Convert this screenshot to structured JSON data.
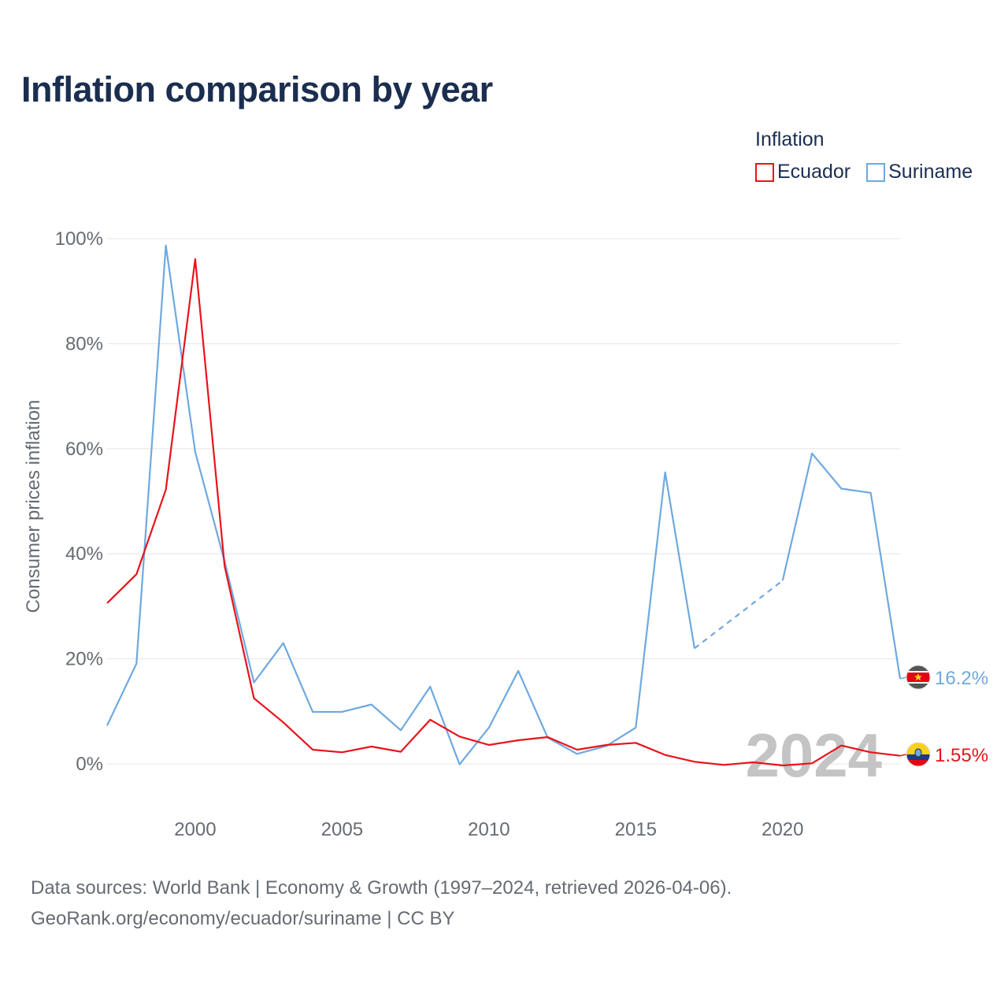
{
  "chart_data": {
    "type": "line",
    "title": "Inflation comparison by year",
    "legend_title": "Inflation",
    "legend_position": "top-right",
    "ylabel": "Consumer prices inflation",
    "xlabel": "",
    "xlim": [
      1997,
      2024
    ],
    "ylim": [
      -10,
      100
    ],
    "y_ticks": [
      0,
      20,
      40,
      60,
      80,
      100
    ],
    "y_tick_labels": [
      "0%",
      "20%",
      "40%",
      "60%",
      "80%",
      "100%"
    ],
    "x_ticks": [
      2000,
      2005,
      2010,
      2015,
      2020
    ],
    "x_tick_labels": [
      "2000",
      "2005",
      "2010",
      "2015",
      "2020"
    ],
    "year_watermark": "2024",
    "series": [
      {
        "name": "Ecuador",
        "color": "#e8141b",
        "end_label": "1.55%",
        "flag_icon": "ecuador-flag-icon",
        "points": [
          [
            1997,
            30.6
          ],
          [
            1998,
            36.1
          ],
          [
            1999,
            52.2
          ],
          [
            2000,
            96.1
          ],
          [
            2001,
            37.7
          ],
          [
            2002,
            12.5
          ],
          [
            2003,
            7.9
          ],
          [
            2004,
            2.7
          ],
          [
            2005,
            2.2
          ],
          [
            2006,
            3.3
          ],
          [
            2007,
            2.3
          ],
          [
            2008,
            8.4
          ],
          [
            2009,
            5.2
          ],
          [
            2010,
            3.6
          ],
          [
            2011,
            4.5
          ],
          [
            2012,
            5.1
          ],
          [
            2013,
            2.7
          ],
          [
            2014,
            3.6
          ],
          [
            2015,
            4.0
          ],
          [
            2016,
            1.7
          ],
          [
            2017,
            0.4
          ],
          [
            2018,
            -0.2
          ],
          [
            2019,
            0.3
          ],
          [
            2020,
            -0.3
          ],
          [
            2021,
            0.1
          ],
          [
            2022,
            3.5
          ],
          [
            2023,
            2.2
          ],
          [
            2024,
            1.55
          ]
        ]
      },
      {
        "name": "Suriname",
        "color": "#6ea9e0",
        "end_label": "16.2%",
        "flag_icon": "suriname-flag-icon",
        "points": [
          [
            1997,
            7.3
          ],
          [
            1998,
            19.1
          ],
          [
            1999,
            98.7
          ],
          [
            2000,
            59.4
          ],
          [
            2001,
            38.6
          ],
          [
            2002,
            15.5
          ],
          [
            2003,
            23.0
          ],
          [
            2004,
            9.9
          ],
          [
            2005,
            9.9
          ],
          [
            2006,
            11.3
          ],
          [
            2007,
            6.4
          ],
          [
            2008,
            14.7
          ],
          [
            2009,
            -0.1
          ],
          [
            2010,
            6.9
          ],
          [
            2011,
            17.7
          ],
          [
            2012,
            5.0
          ],
          [
            2013,
            1.9
          ],
          [
            2014,
            3.4
          ],
          [
            2015,
            6.9
          ],
          [
            2016,
            55.5
          ],
          [
            2017,
            22.0
          ],
          [
            2020,
            34.9
          ],
          [
            2021,
            59.1
          ],
          [
            2022,
            52.4
          ],
          [
            2023,
            51.6
          ],
          [
            2024,
            16.2
          ]
        ],
        "dashed_segments": [
          [
            2017,
            2020
          ]
        ]
      }
    ]
  },
  "footer": {
    "line1": "Data sources: World Bank | Economy & Growth (1997–2024, retrieved 2026-04-06).",
    "line2": "GeoRank.org/economy/ecuador/suriname | CC BY"
  }
}
